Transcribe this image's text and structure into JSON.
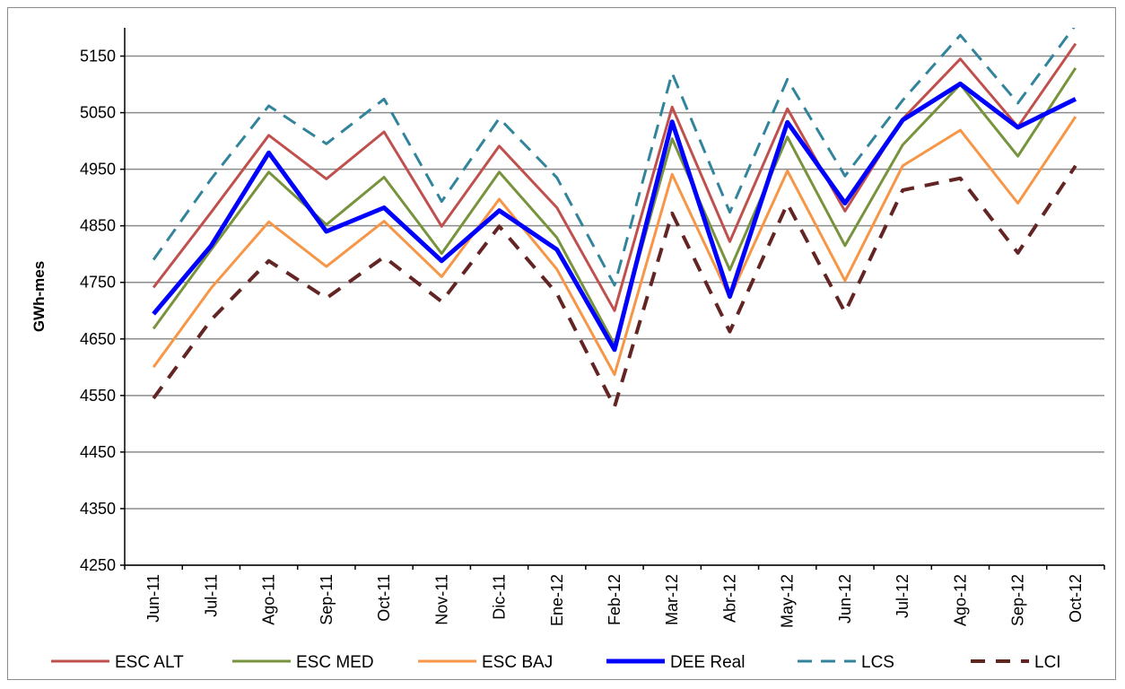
{
  "chart_data": {
    "type": "line",
    "title": "",
    "xlabel": "",
    "ylabel": "GWh-mes",
    "ylim": [
      4250,
      5200
    ],
    "yticks": [
      4250,
      4350,
      4450,
      4550,
      4650,
      4750,
      4850,
      4950,
      5050,
      5150
    ],
    "grid": true,
    "legend_position": "bottom",
    "categories": [
      "Jun-11",
      "Jul-11",
      "Ago-11",
      "Sep-11",
      "Oct-11",
      "Nov-11",
      "Dic-11",
      "Ene-12",
      "Feb-12",
      "Mar-12",
      "Abr-12",
      "May-12",
      "Jun-12",
      "Jul-12",
      "Ago-12",
      "Sep-12",
      "Oct-12"
    ],
    "series": [
      {
        "name": "ESC ALT",
        "color": "#c0504d",
        "dash": "solid",
        "width": 3,
        "values": [
          4741,
          4874,
          5010,
          4933,
          5016,
          4849,
          4991,
          4882,
          4700,
          5060,
          4822,
          5057,
          4876,
          5039,
          5145,
          5025,
          5172
        ]
      },
      {
        "name": "ESC MED",
        "color": "#77933c",
        "dash": "solid",
        "width": 3,
        "values": [
          4668,
          4808,
          4945,
          4852,
          4936,
          4801,
          4945,
          4829,
          4640,
          5004,
          4772,
          5007,
          4815,
          4993,
          5100,
          4973,
          5129
        ]
      },
      {
        "name": "ESC BAJ",
        "color": "#f79646",
        "dash": "solid",
        "width": 3,
        "values": [
          4600,
          4740,
          4857,
          4778,
          4858,
          4760,
          4897,
          4773,
          4587,
          4941,
          4723,
          4947,
          4753,
          4956,
          5019,
          4890,
          5043
        ]
      },
      {
        "name": "DEE Real",
        "color": "#0000ff",
        "dash": "solid",
        "width": 5,
        "values": [
          4694,
          4815,
          4979,
          4840,
          4882,
          4788,
          4877,
          4808,
          4631,
          5034,
          4725,
          5033,
          4890,
          5037,
          5101,
          5024,
          5074
        ]
      },
      {
        "name": "LCS",
        "color": "#31849b",
        "dash": "dashed",
        "width": 3,
        "values": [
          4790,
          4933,
          5062,
          4995,
          5074,
          4893,
          5040,
          4935,
          4745,
          5120,
          4874,
          5109,
          4938,
          5072,
          5187,
          5067,
          5205
        ]
      },
      {
        "name": "LCI",
        "color": "#632523",
        "dash": "dashed",
        "width": 4,
        "values": [
          4545,
          4684,
          4788,
          4722,
          4795,
          4716,
          4849,
          4730,
          4530,
          4872,
          4663,
          4889,
          4697,
          4913,
          4934,
          4802,
          4956
        ]
      }
    ]
  }
}
